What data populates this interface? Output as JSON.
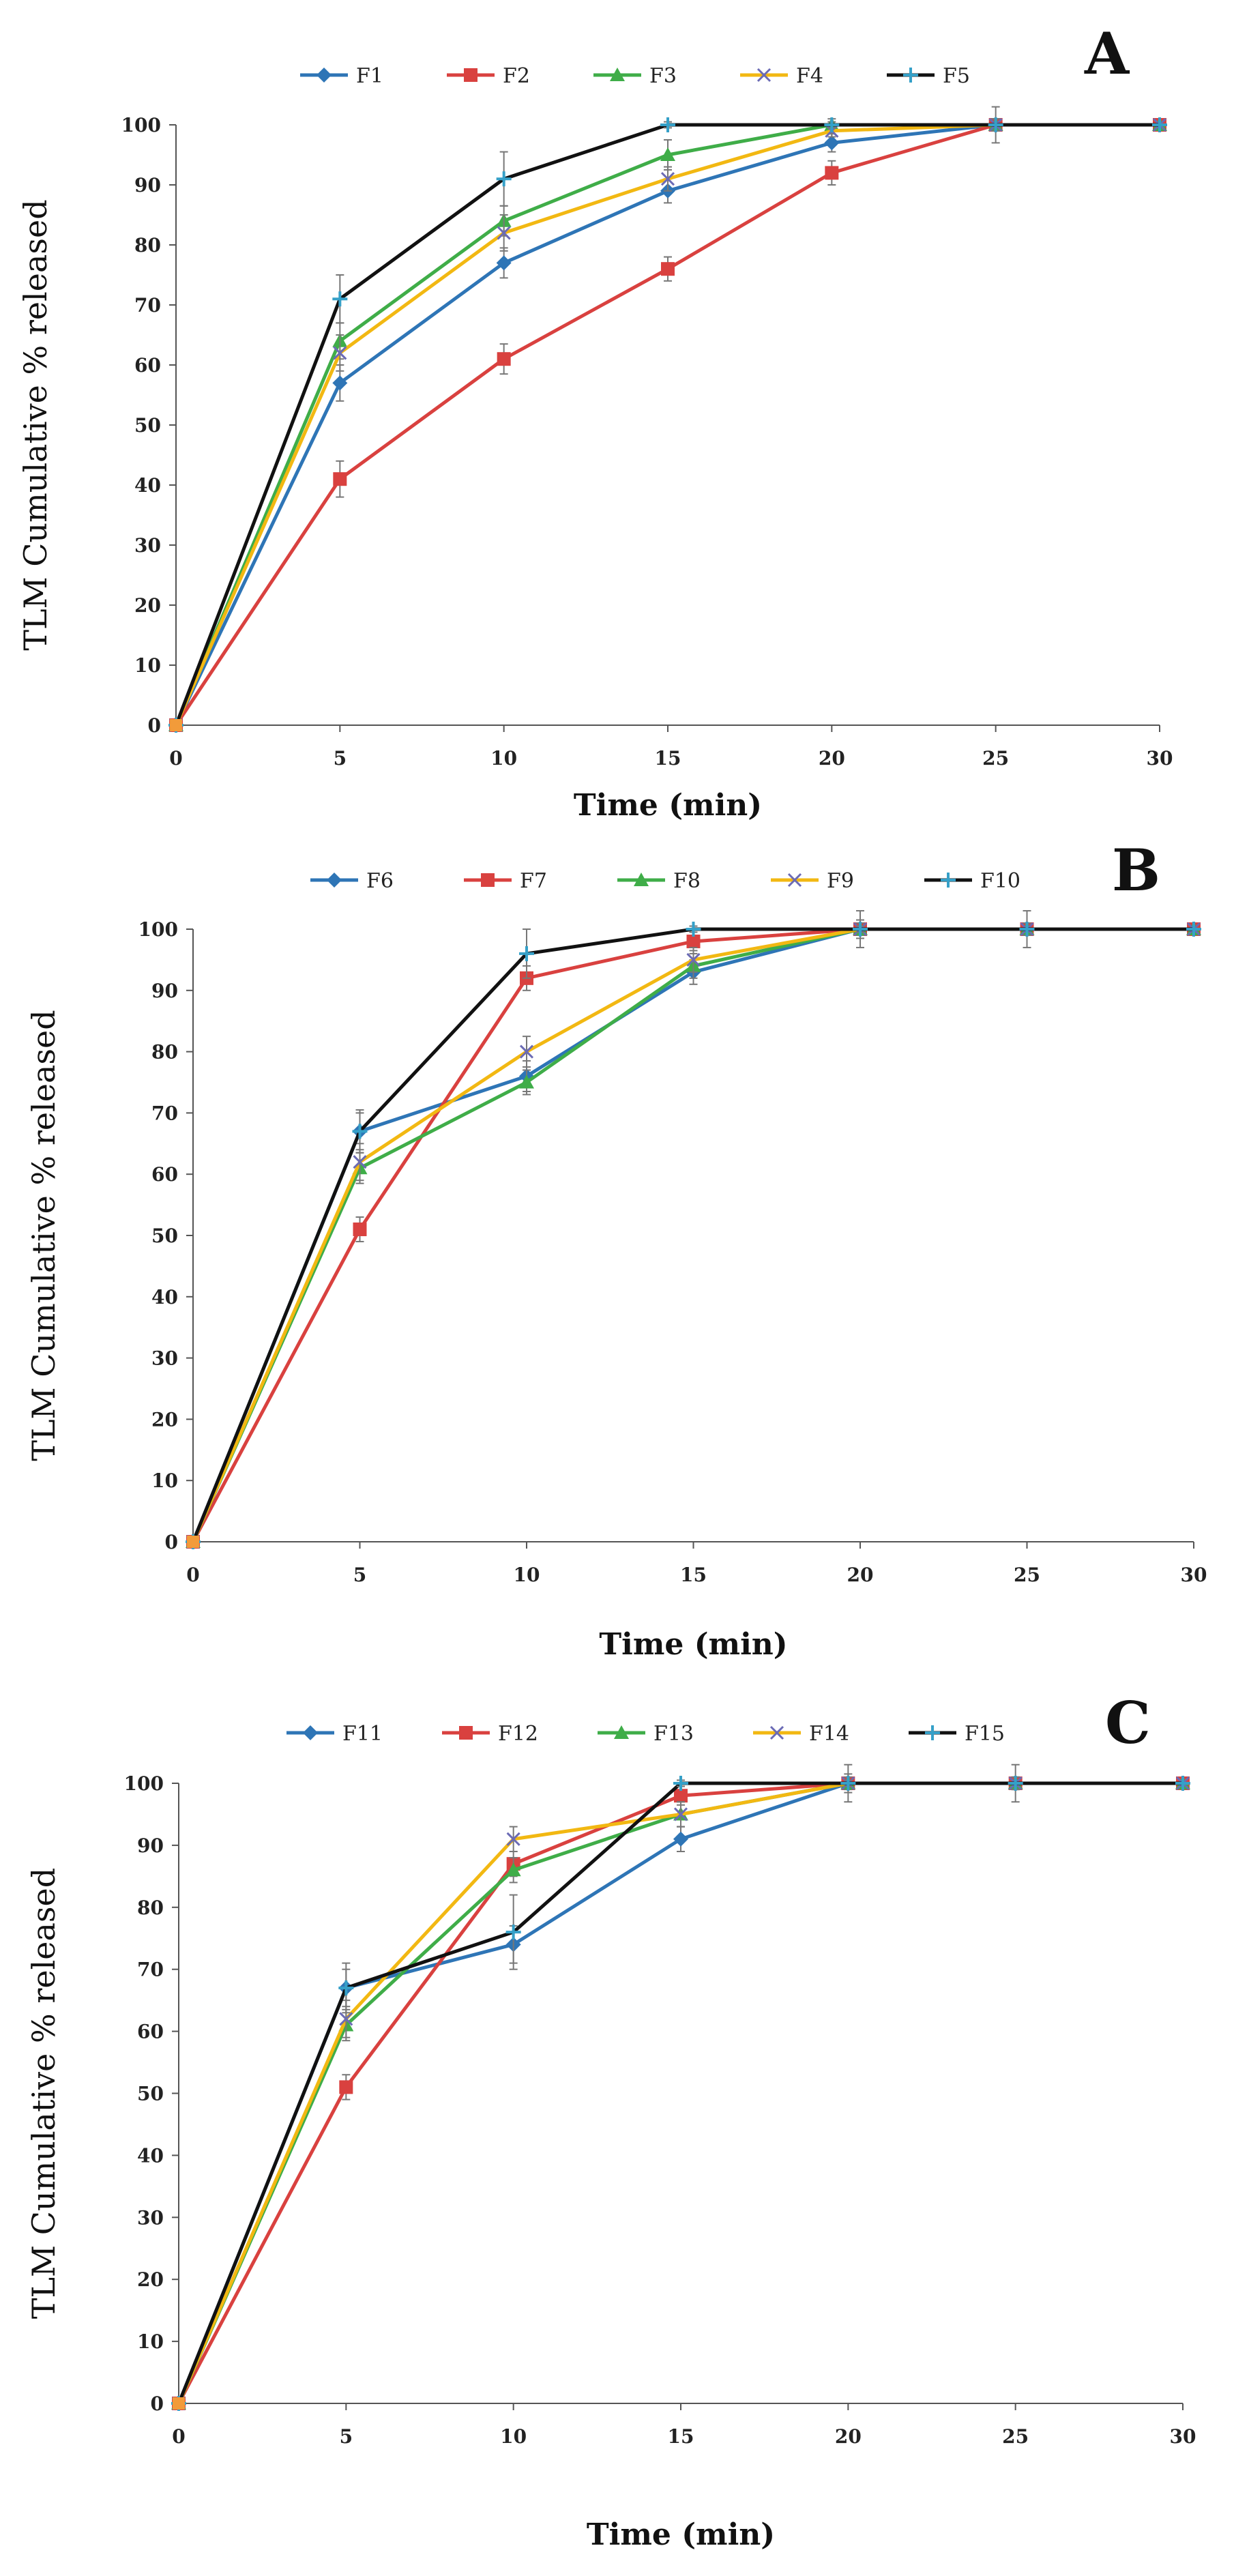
{
  "chart_data": [
    {
      "type": "line",
      "panel_label": "A",
      "xlabel": "Time (min)",
      "ylabel": "TLM Cumulative % released",
      "x": [
        0,
        5,
        10,
        15,
        20,
        25,
        30
      ],
      "x_ticks": [
        "0",
        "5",
        "10",
        "15",
        "20",
        "25",
        "30"
      ],
      "y_ticks": [
        "0",
        "10",
        "20",
        "30",
        "40",
        "50",
        "60",
        "70",
        "80",
        "90",
        "100"
      ],
      "xlim": [
        0,
        30
      ],
      "ylim": [
        0,
        100
      ],
      "legend_position": "top",
      "series": [
        {
          "name": "F1",
          "color": "#2e75b6",
          "marker": "diamond",
          "values": [
            0,
            57,
            77,
            89,
            97,
            100,
            100
          ],
          "errors": [
            0,
            3,
            2.5,
            2,
            1.5,
            1,
            0
          ]
        },
        {
          "name": "F2",
          "color": "#d9413f",
          "marker": "square",
          "values": [
            0,
            41,
            61,
            76,
            92,
            100,
            100
          ],
          "errors": [
            0,
            3,
            2.5,
            2,
            2,
            3,
            0
          ]
        },
        {
          "name": "F3",
          "color": "#3fad48",
          "marker": "triangle",
          "values": [
            0,
            64,
            84,
            95,
            100,
            100,
            100
          ],
          "errors": [
            0,
            3,
            2.5,
            2.5,
            1,
            1,
            0
          ]
        },
        {
          "name": "F4",
          "color": "#f2b812",
          "marker": "x",
          "values": [
            0,
            62,
            82,
            91,
            99,
            100,
            100
          ],
          "errors": [
            0,
            3,
            3,
            2,
            1,
            1,
            0
          ]
        },
        {
          "name": "F5",
          "color": "#111111",
          "marker": "star",
          "markerColor": "#35a0c8",
          "values": [
            0,
            71,
            91,
            100,
            100,
            100,
            100
          ],
          "errors": [
            0,
            4,
            4.5,
            0.5,
            0.5,
            1,
            0
          ]
        }
      ]
    },
    {
      "type": "line",
      "panel_label": "B",
      "xlabel": "Time (min)",
      "ylabel": "TLM Cumulative % released",
      "x": [
        0,
        5,
        10,
        15,
        20,
        25,
        30
      ],
      "x_ticks": [
        "0",
        "5",
        "10",
        "15",
        "20",
        "25",
        "30"
      ],
      "y_ticks": [
        "0",
        "10",
        "20",
        "30",
        "40",
        "50",
        "60",
        "70",
        "80",
        "90",
        "100"
      ],
      "xlim": [
        0,
        30
      ],
      "ylim": [
        0,
        100
      ],
      "legend_position": "top",
      "series": [
        {
          "name": "F6",
          "color": "#2e75b6",
          "marker": "diamond",
          "values": [
            0,
            67,
            76,
            93,
            100,
            100,
            100
          ],
          "errors": [
            0,
            3,
            2.5,
            2,
            1.5,
            3,
            0
          ]
        },
        {
          "name": "F7",
          "color": "#d9413f",
          "marker": "square",
          "values": [
            0,
            51,
            92,
            98,
            100,
            100,
            100
          ],
          "errors": [
            0,
            2,
            2,
            1.5,
            1,
            1,
            0
          ]
        },
        {
          "name": "F8",
          "color": "#3fad48",
          "marker": "triangle",
          "values": [
            0,
            61,
            75,
            94,
            100,
            100,
            100
          ],
          "errors": [
            0,
            2.5,
            2,
            2,
            1,
            1,
            0
          ]
        },
        {
          "name": "F9",
          "color": "#f2b812",
          "marker": "x",
          "values": [
            0,
            62,
            80,
            95,
            100,
            100,
            100
          ],
          "errors": [
            0,
            3,
            2.5,
            2,
            3,
            1,
            0
          ]
        },
        {
          "name": "F10",
          "color": "#111111",
          "marker": "star",
          "markerColor": "#35a0c8",
          "values": [
            0,
            67,
            96,
            100,
            100,
            100,
            100
          ],
          "errors": [
            0,
            3.5,
            4,
            0.5,
            0.5,
            1,
            0
          ]
        }
      ]
    },
    {
      "type": "line",
      "panel_label": "C",
      "xlabel": "Time (min)",
      "ylabel": "TLM Cumulative % released",
      "x": [
        0,
        5,
        10,
        15,
        20,
        25,
        30
      ],
      "x_ticks": [
        "0",
        "5",
        "10",
        "15",
        "20",
        "25",
        "30"
      ],
      "y_ticks": [
        "0",
        "10",
        "20",
        "30",
        "40",
        "50",
        "60",
        "70",
        "80",
        "90",
        "100"
      ],
      "xlim": [
        0,
        30
      ],
      "ylim": [
        0,
        100
      ],
      "legend_position": "top",
      "series": [
        {
          "name": "F11",
          "color": "#2e75b6",
          "marker": "diamond",
          "values": [
            0,
            67,
            74,
            91,
            100,
            100,
            100
          ],
          "errors": [
            0,
            3,
            3,
            2,
            1.5,
            3,
            0
          ]
        },
        {
          "name": "F12",
          "color": "#d9413f",
          "marker": "square",
          "values": [
            0,
            51,
            87,
            98,
            100,
            100,
            100
          ],
          "errors": [
            0,
            2,
            2,
            1.5,
            1,
            1,
            0
          ]
        },
        {
          "name": "F13",
          "color": "#3fad48",
          "marker": "triangle",
          "values": [
            0,
            61,
            86,
            95,
            100,
            100,
            100
          ],
          "errors": [
            0,
            2.5,
            2,
            2,
            1,
            1,
            0
          ]
        },
        {
          "name": "F14",
          "color": "#f2b812",
          "marker": "x",
          "values": [
            0,
            62,
            91,
            95,
            100,
            100,
            100
          ],
          "errors": [
            0,
            3,
            2,
            2,
            3,
            1,
            0
          ]
        },
        {
          "name": "F15",
          "color": "#111111",
          "marker": "star",
          "markerColor": "#35a0c8",
          "values": [
            0,
            67,
            76,
            100,
            100,
            100,
            100
          ],
          "errors": [
            0,
            4,
            6,
            0.5,
            0.5,
            1,
            0
          ]
        }
      ]
    }
  ]
}
